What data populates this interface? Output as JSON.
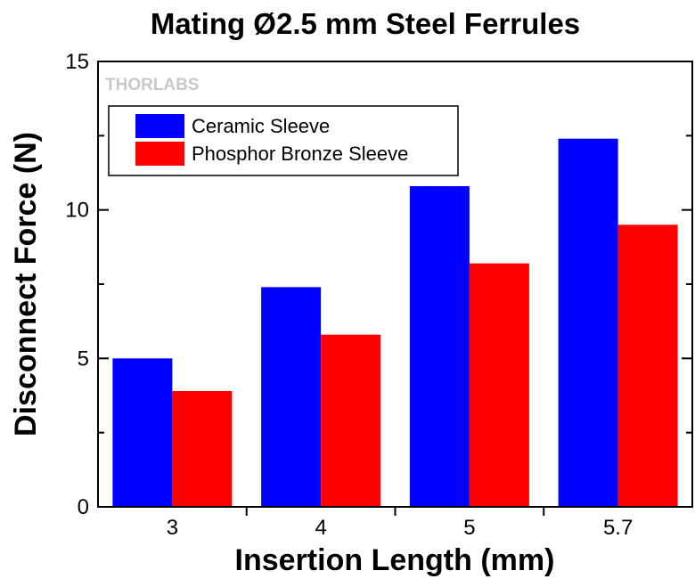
{
  "chart_data": {
    "type": "bar",
    "title": "Mating Ø2.5 mm Steel Ferrules",
    "xlabel": "Insertion Length (mm)",
    "ylabel": "Disconnect Force (N)",
    "categories": [
      "3",
      "4",
      "5",
      "5.7"
    ],
    "series": [
      {
        "name": "Ceramic Sleeve",
        "color": "#0000ff",
        "values": [
          5.0,
          7.4,
          10.8,
          12.4
        ]
      },
      {
        "name": "Phosphor Bronze Sleeve",
        "color": "#ff0000",
        "values": [
          3.9,
          5.8,
          8.2,
          9.5
        ]
      }
    ],
    "ylim": [
      0,
      15
    ],
    "yticks": [
      "0",
      "5",
      "10",
      "15"
    ],
    "legend_position": "top-left",
    "grid": false
  },
  "watermark": {
    "text": "THORLABS"
  }
}
